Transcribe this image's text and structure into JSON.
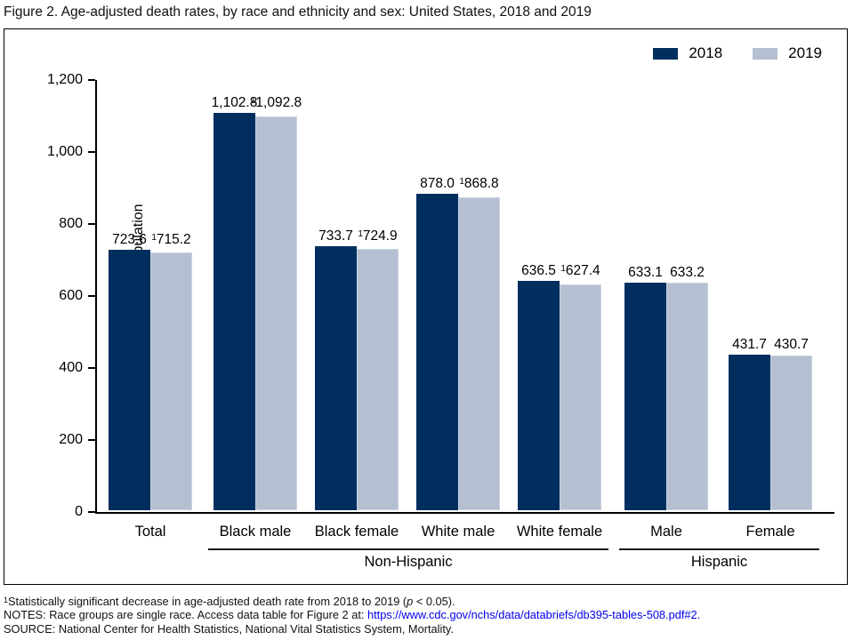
{
  "title": "Figure 2. Age-adjusted death rates, by race and ethnicity and sex: United States, 2018 and 2019",
  "legend": {
    "position": "top-right"
  },
  "chart_data": {
    "type": "bar",
    "title": "Figure 2. Age-adjusted death rates, by race and ethnicity and sex: United States, 2018 and 2019",
    "xlabel": "",
    "ylabel": "Deaths per 100,000 U.S. standard population",
    "ylim": [
      0,
      1200
    ],
    "grid": false,
    "legend_position": "top-right",
    "yticks": [
      {
        "value": 0,
        "label": "0"
      },
      {
        "value": 200,
        "label": "200"
      },
      {
        "value": 400,
        "label": "400"
      },
      {
        "value": 600,
        "label": "600"
      },
      {
        "value": 800,
        "label": "800"
      },
      {
        "value": 1000,
        "label": "1,000"
      },
      {
        "value": 1200,
        "label": "1,200"
      }
    ],
    "categories": [
      "Total",
      "Black male",
      "Black female",
      "White male",
      "White female",
      "Male",
      "Female"
    ],
    "series": [
      {
        "name": "2018",
        "color": "#002f5f",
        "values": [
          723.6,
          1102.8,
          733.7,
          878.0,
          636.5,
          633.1,
          431.7
        ],
        "labels": [
          "723.6",
          "1,102.8",
          "733.7",
          "878.0",
          "636.5",
          "633.1",
          "431.7"
        ],
        "significant": [
          false,
          false,
          false,
          false,
          false,
          false,
          false
        ]
      },
      {
        "name": "2019",
        "color": "#b4c0d1",
        "values": [
          715.2,
          1092.8,
          724.9,
          868.8,
          627.4,
          633.2,
          430.7
        ],
        "labels": [
          "715.2",
          "1,092.8",
          "724.9",
          "868.8",
          "627.4",
          "633.2",
          "430.7"
        ],
        "significant": [
          true,
          true,
          true,
          true,
          true,
          false,
          false
        ]
      }
    ],
    "group_spans": [
      {
        "label": "Non-Hispanic",
        "from": 1,
        "to": 4
      },
      {
        "label": "Hispanic",
        "from": 5,
        "to": 6
      }
    ]
  },
  "footnotes": {
    "line1_sup": "1",
    "line1_pre": "Statistically significant decrease in age-adjusted death rate from 2018 to 2019 (",
    "line1_italic": "p",
    "line1_post": " < 0.05).",
    "line2_pre": "NOTES: Race groups are single race. Access data table for Figure 2 at: ",
    "line2_link": "https://www.cdc.gov/nchs/data/databriefs/db395-tables-508.pdf#2.",
    "line3": "SOURCE: National Center for Health Statistics, National Vital Statistics System, Mortality."
  }
}
